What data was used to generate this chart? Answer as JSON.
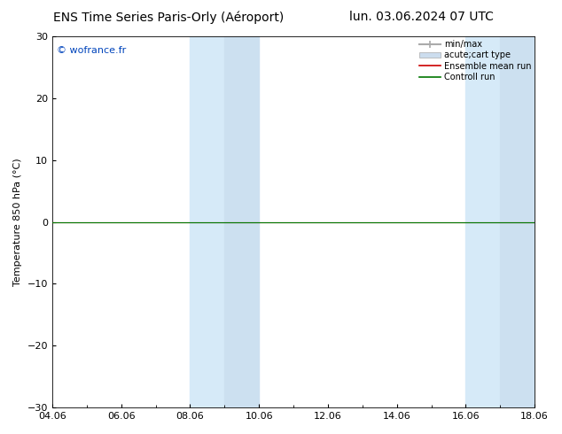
{
  "title_left": "ENS Time Series Paris-Orly (Aéroport)",
  "title_right": "lun. 03.06.2024 07 UTC",
  "ylabel": "Temperature 850 hPa (°C)",
  "ylim": [
    -30,
    30
  ],
  "yticks": [
    -30,
    -20,
    -10,
    0,
    10,
    20,
    30
  ],
  "xtick_labels": [
    "04.06",
    "06.06",
    "08.06",
    "10.06",
    "12.06",
    "14.06",
    "16.06",
    "18.06"
  ],
  "xtick_positions": [
    0,
    2,
    4,
    6,
    8,
    10,
    12,
    14
  ],
  "xlim": [
    0,
    14
  ],
  "shaded_regions": [
    {
      "start": 4,
      "end": 5
    },
    {
      "start": 5,
      "end": 6
    },
    {
      "start": 12,
      "end": 13
    },
    {
      "start": 13,
      "end": 14
    }
  ],
  "shaded_color": "#ddeeff",
  "shaded_color2": "#cce4f5",
  "bg_color": "#ffffff",
  "watermark_text": "© wofrance.fr",
  "watermark_color": "#0044bb",
  "control_run_value": 0.0,
  "ensemble_mean_value": 0.0,
  "control_run_color": "#007700",
  "ensemble_mean_color": "#cc0000",
  "legend_items": [
    {
      "label": "min/max"
    },
    {
      "label": "acute;cart type"
    },
    {
      "label": "Ensemble mean run",
      "color": "#cc0000"
    },
    {
      "label": "Controll run",
      "color": "#007700"
    }
  ],
  "legend_minmax_color": "#aaaaaa",
  "legend_fill_color": "#ccddee",
  "spine_color": "#000000",
  "title_fontsize": 10,
  "tick_fontsize": 8,
  "ylabel_fontsize": 8,
  "legend_fontsize": 7
}
